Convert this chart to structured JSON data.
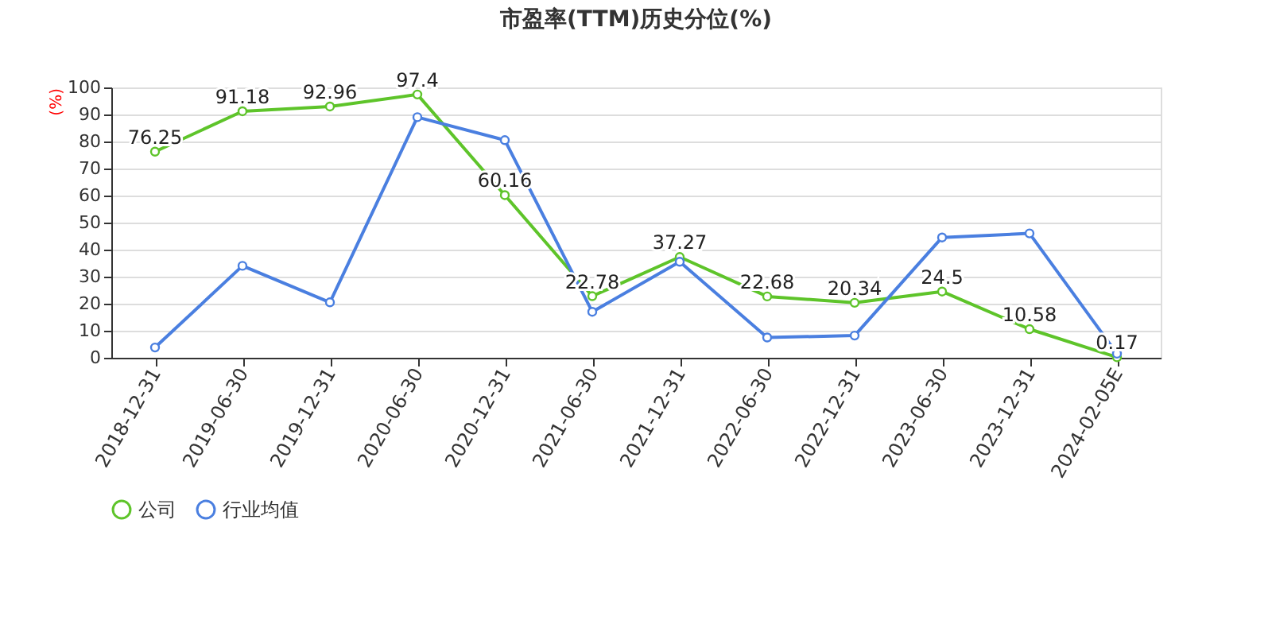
{
  "chart_data": {
    "type": "line",
    "title": "市盈率(TTM)历史分位(%)",
    "ylabel": "(%)",
    "categories": [
      "2018-12-31",
      "2019-06-30",
      "2019-12-31",
      "2020-06-30",
      "2020-12-31",
      "2021-06-30",
      "2021-12-31",
      "2022-06-30",
      "2022-12-31",
      "2023-06-30",
      "2023-12-31",
      "2024-02-05E"
    ],
    "series": [
      {
        "name": "公司",
        "color": "#5ec42a",
        "values": [
          76.25,
          91.18,
          92.96,
          97.4,
          60.16,
          22.78,
          37.27,
          22.68,
          20.34,
          24.5,
          10.58,
          0.17
        ],
        "value_labels": [
          "76.25",
          "91.18",
          "92.96",
          "97.4",
          "60.16",
          "22.78",
          "37.27",
          "22.68",
          "20.34",
          "24.5",
          "10.58",
          "0.17"
        ]
      },
      {
        "name": "行业均值",
        "color": "#4a7fe0",
        "values": [
          3.8,
          34,
          20.5,
          89,
          80.5,
          17,
          35.5,
          7.5,
          8.2,
          44.5,
          46,
          1.5
        ]
      }
    ],
    "ylim": [
      0,
      100
    ],
    "yticks": [
      0,
      10,
      20,
      30,
      40,
      50,
      60,
      70,
      80,
      90,
      100
    ],
    "grid": "y",
    "legend": "bottom",
    "marker": "circle",
    "line_style": "solid"
  }
}
